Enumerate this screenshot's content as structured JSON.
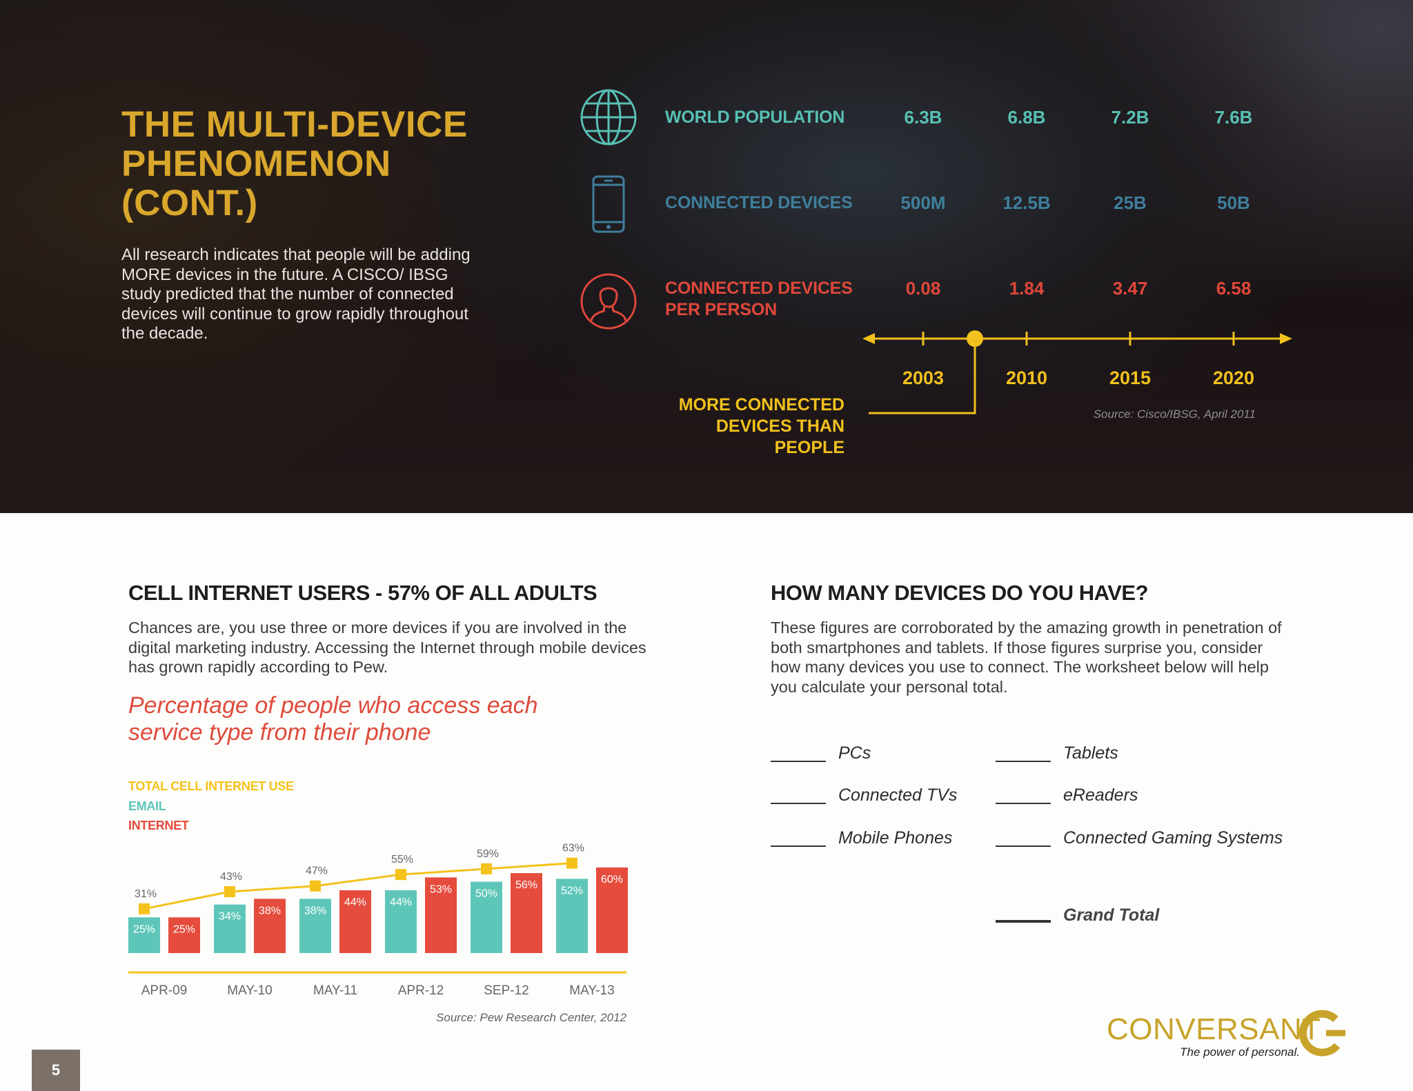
{
  "hero": {
    "title_lines": [
      "THE MULTI-DEVICE",
      "PHENOMENON",
      "(CONT.)"
    ],
    "body": "All research indicates that people will be adding MORE devices in the future. A CISCO/ IBSG study predicted that the number of connected devices will continue to grow rapidly throughout the decade.",
    "rows": [
      {
        "icon": "globe-icon",
        "label_lines": [
          "WORLD POPULATION"
        ],
        "values": [
          "6.3B",
          "6.8B",
          "7.2B",
          "7.6B"
        ],
        "color": "#58c0b4"
      },
      {
        "icon": "smartphone-icon",
        "label_lines": [
          "CONNECTED DEVICES"
        ],
        "values": [
          "500M",
          "12.5B",
          "25B",
          "50B"
        ],
        "color": "#3f7f9c"
      },
      {
        "icon": "person-icon",
        "label_lines": [
          "CONNECTED DEVICES",
          "PER PERSON"
        ],
        "values": [
          "0.08",
          "1.84",
          "3.47",
          "6.58"
        ],
        "color": "#e0483a"
      }
    ],
    "years": [
      "2003",
      "2010",
      "2015",
      "2020"
    ],
    "timeline_color": "#f1c11d",
    "callout_lines": [
      "MORE CONNECTED",
      "DEVICES THAN PEOPLE"
    ],
    "source": "Source: Cisco/IBSG, April 2011"
  },
  "left": {
    "heading": "CELL INTERNET USERS - 57% OF ALL ADULTS",
    "body": "Chances are, you use three or more devices if you are involved in the digital marketing industry. Accessing the Internet through mobile devices has grown rapidly according to Pew.",
    "chart_title_lines": [
      "Percentage of people who access each",
      "service type from their phone"
    ],
    "source": "Source: Pew Research Center, 2012"
  },
  "chart_data": {
    "type": "bar",
    "categories": [
      "APR-09",
      "MAY-10",
      "MAY-11",
      "APR-12",
      "SEP-12",
      "MAY-13"
    ],
    "series": [
      {
        "name": "TOTAL CELL INTERNET USE",
        "type": "line",
        "color": "#f5c21b",
        "values": [
          31,
          43,
          47,
          55,
          59,
          63
        ]
      },
      {
        "name": "EMAIL",
        "type": "bar",
        "color": "#5ec6b8",
        "values": [
          25,
          34,
          38,
          44,
          50,
          52
        ]
      },
      {
        "name": "INTERNET",
        "type": "bar",
        "color": "#e54c3d",
        "values": [
          25,
          38,
          44,
          53,
          56,
          60
        ]
      }
    ],
    "value_suffix": "%",
    "ylim": [
      0,
      75
    ],
    "grid": false,
    "legend": "top-left"
  },
  "right": {
    "heading": "HOW MANY DEVICES DO YOU HAVE?",
    "body": "These figures are corroborated by the amazing growth in penetration of both smartphones and tablets. If those figures surprise you, consider how many devices you use to connect. The worksheet below will help you calculate your personal total.",
    "items_left": [
      "PCs",
      "Connected TVs",
      "Mobile Phones"
    ],
    "items_right": [
      "Tablets",
      "eReaders",
      "Connected Gaming Systems"
    ],
    "total_label": "Grand Total"
  },
  "brand": {
    "name": "CONVERSANT",
    "tagline": "The power of personal.",
    "color": "#c8a32a"
  },
  "page_number": "5"
}
